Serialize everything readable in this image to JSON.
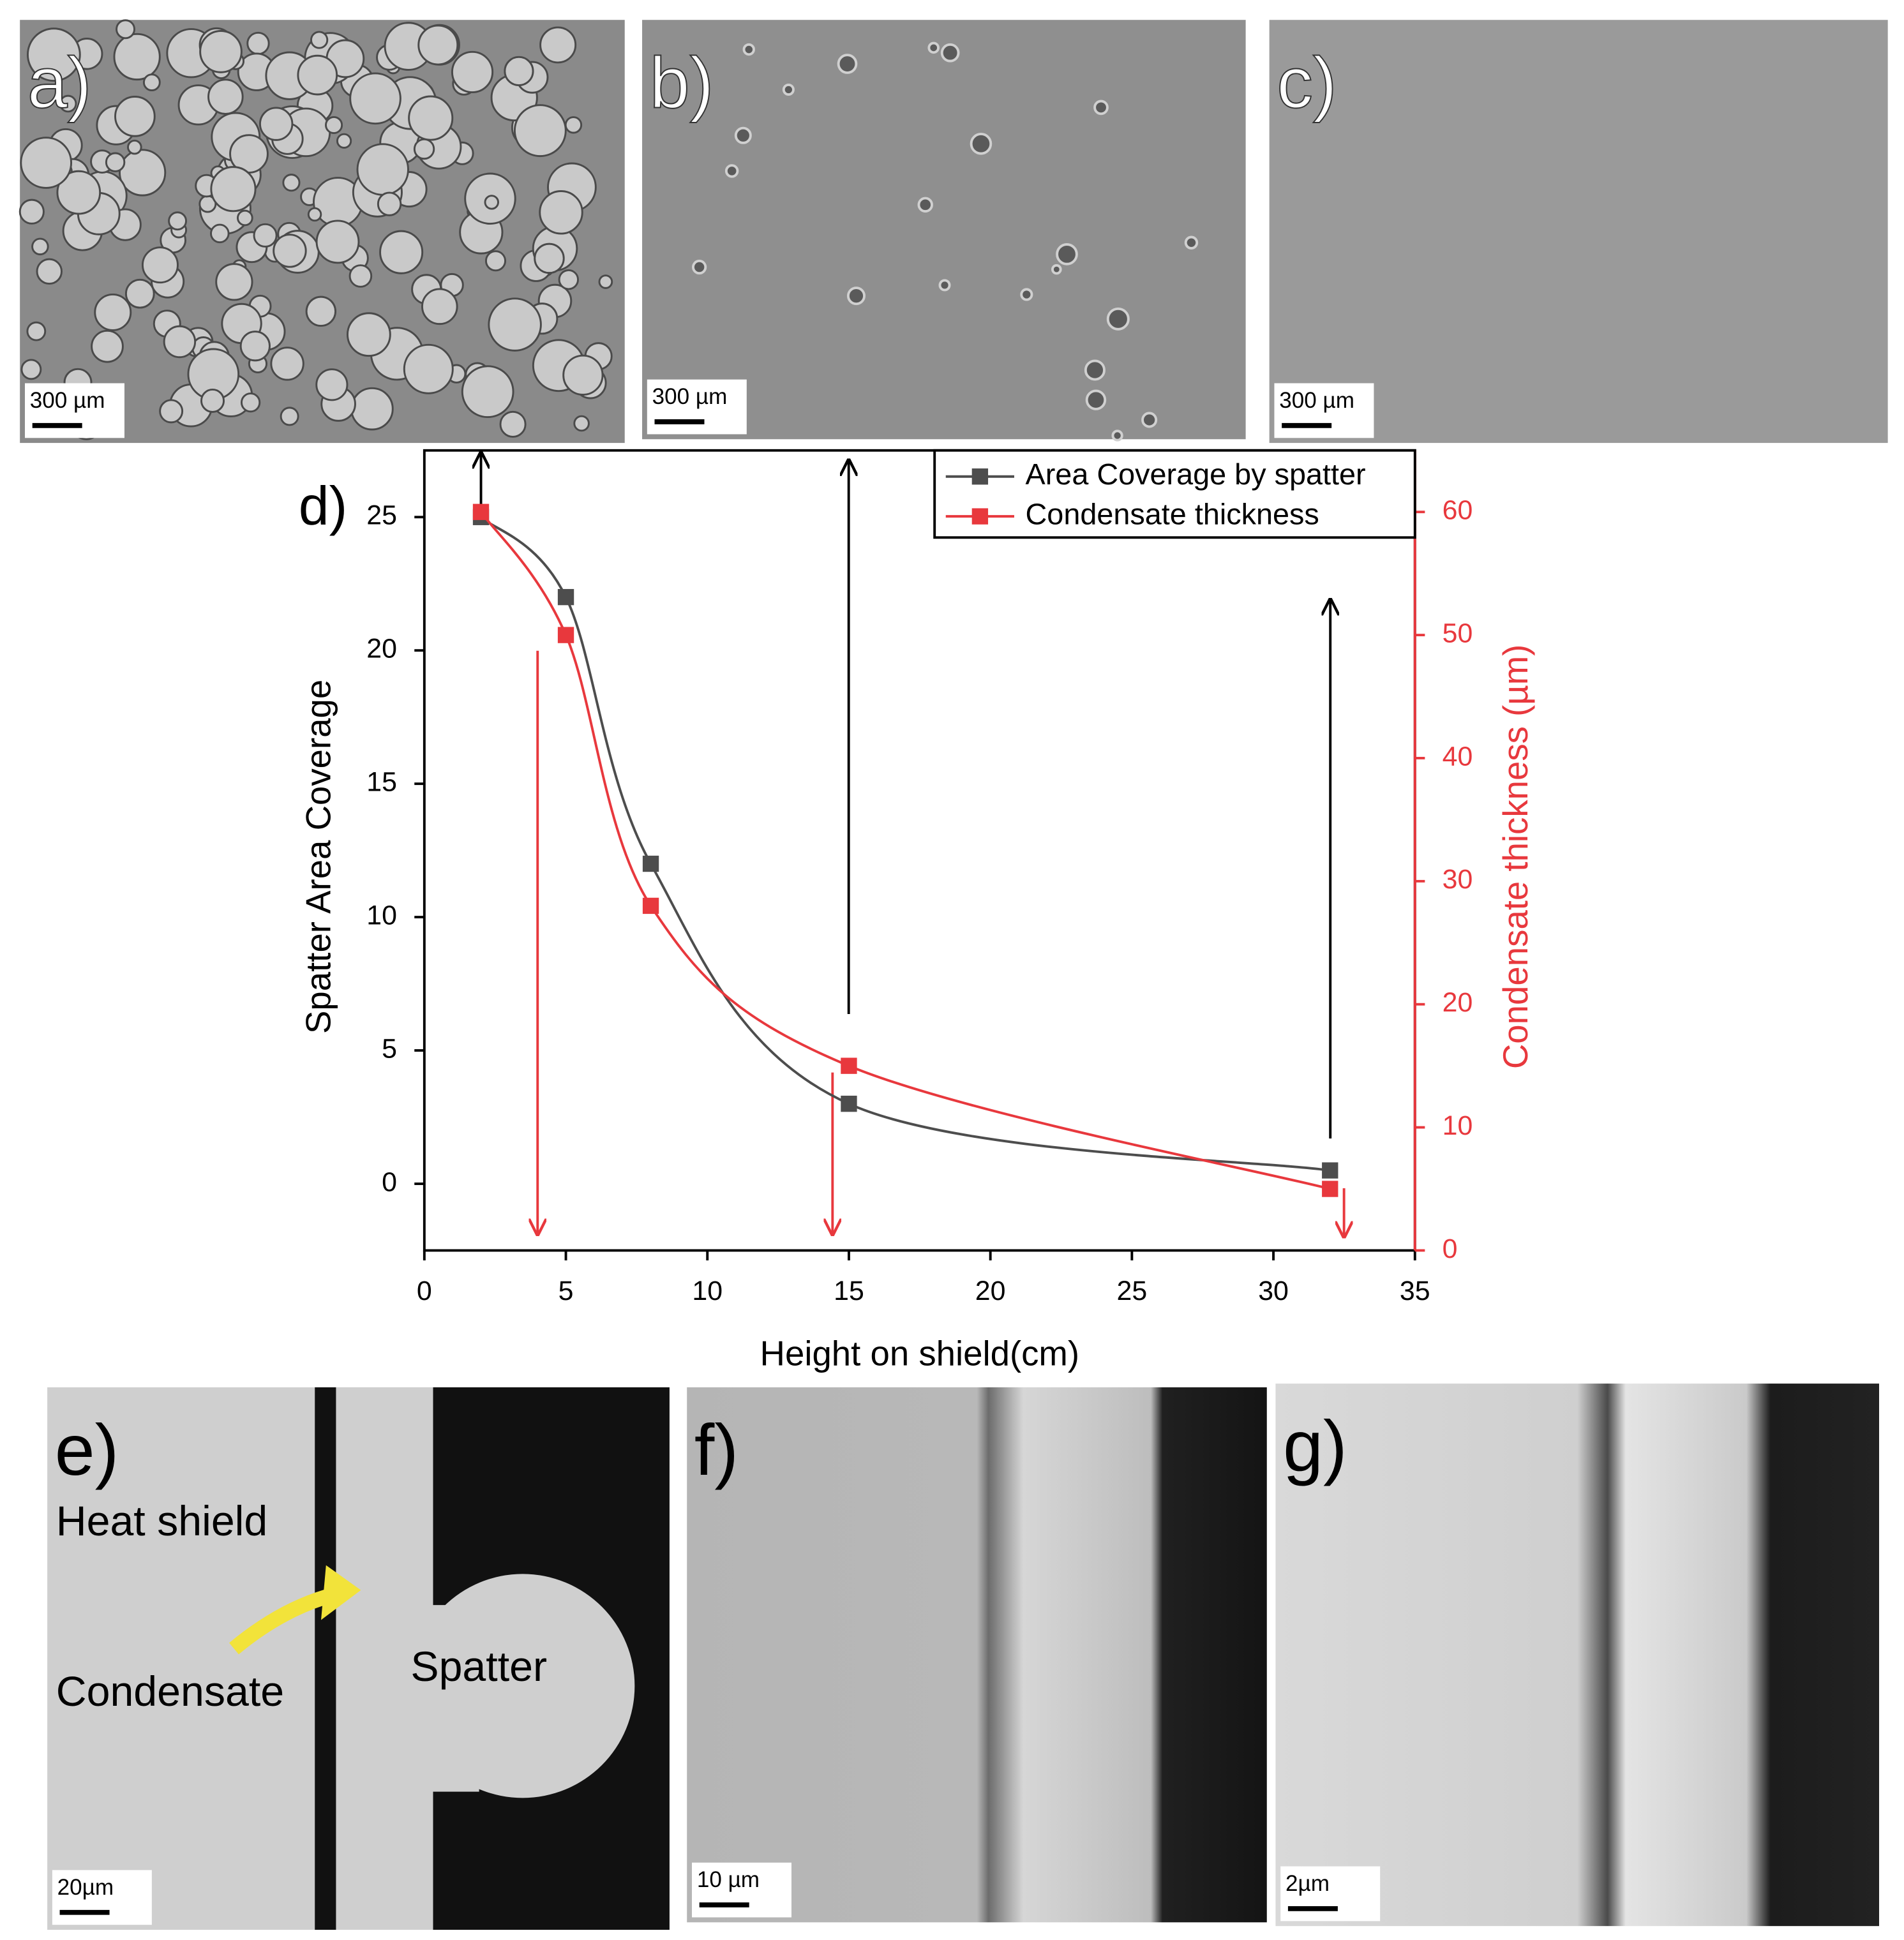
{
  "chart_data": {
    "type": "scatter",
    "label": "d)",
    "xlabel": "Height on shield(cm)",
    "ylabel": "Spatter Area Coverage",
    "y2label": "Condensate thickness (µm)",
    "x": [
      2,
      5,
      8,
      15,
      32
    ],
    "series": [
      {
        "name": "Area Coverage by spatter",
        "color": "#4d4d4d",
        "values": [
          25,
          22,
          12,
          3,
          0.5
        ]
      },
      {
        "name": "Condensate thickness",
        "color": "#e8383d",
        "axis": "y2",
        "values": [
          60,
          50,
          28,
          15,
          5
        ]
      }
    ],
    "xlim": [
      0,
      35
    ],
    "ylim": [
      -2.5,
      27.5
    ],
    "y2lim": [
      0,
      65
    ],
    "xticks": [
      0,
      5,
      10,
      15,
      20,
      25,
      30,
      35
    ],
    "yticks": [
      0,
      5,
      10,
      15,
      20,
      25
    ],
    "y2ticks": [
      0,
      10,
      20,
      30,
      40,
      50,
      60
    ],
    "legend": "upper right",
    "y2color": "#e8383d"
  },
  "panels": [
    {
      "label": "a)",
      "scale": "300 µm"
    },
    {
      "label": "b)",
      "scale": "300 µm"
    },
    {
      "label": "c)",
      "scale": "300 µm"
    },
    {
      "label": "e)",
      "scale": "20µm",
      "annotations": [
        "Heat shield",
        "Condensate",
        "Spatter"
      ]
    },
    {
      "label": "f)",
      "scale": "10 µm"
    },
    {
      "label": "g)",
      "scale": "2µm"
    }
  ]
}
